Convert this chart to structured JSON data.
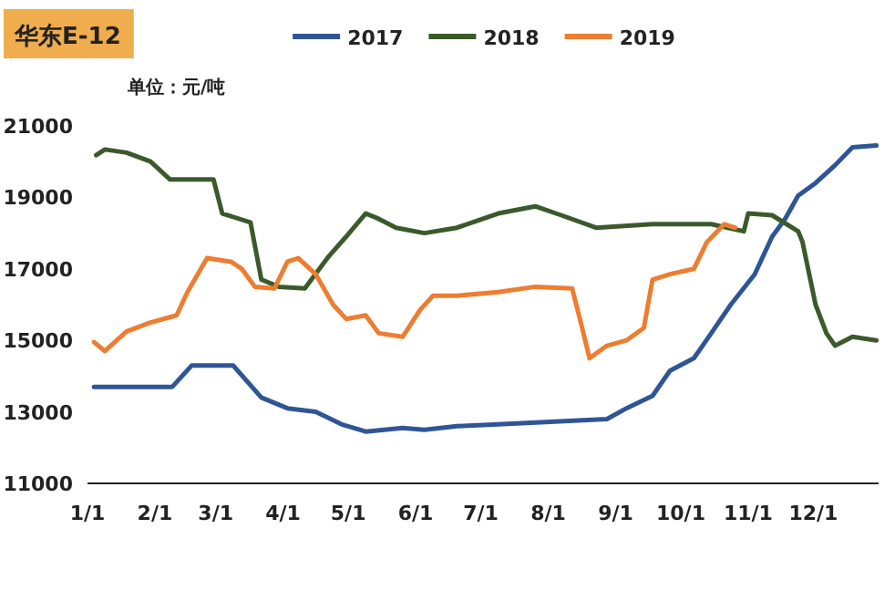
{
  "chart_data": {
    "type": "line",
    "title": "华东E-12",
    "ylabel": "单位：元/吨",
    "legend": "top",
    "xlim": [
      "--01-01",
      "--12-31"
    ],
    "ylim": [
      11000,
      21000
    ],
    "yticks": [
      11000,
      13000,
      15000,
      17000,
      19000,
      21000
    ],
    "xticks": [
      {
        "value": "--01-01",
        "label": "1/1"
      },
      {
        "value": "--02-01",
        "label": "2/1"
      },
      {
        "value": "--03-01",
        "label": "3/1"
      },
      {
        "value": "--04-01",
        "label": "4/1"
      },
      {
        "value": "--05-01",
        "label": "5/1"
      },
      {
        "value": "--06-01",
        "label": "6/1"
      },
      {
        "value": "--07-01",
        "label": "7/1"
      },
      {
        "value": "--08-01",
        "label": "8/1"
      },
      {
        "value": "--09-01",
        "label": "9/1"
      },
      {
        "value": "--10-01",
        "label": "10/1"
      },
      {
        "value": "--11-01",
        "label": "11/1"
      },
      {
        "value": "--12-01",
        "label": "12/1"
      }
    ],
    "series": [
      {
        "name": "2017",
        "color": "#2f5597",
        "x": [
          "--01-04",
          "--02-09",
          "--02-18",
          "--03-09",
          "--03-22",
          "--04-03",
          "--04-16",
          "--04-28",
          "--05-09",
          "--05-26",
          "--06-05",
          "--06-20",
          "--07-09",
          "--08-28",
          "--09-06",
          "--09-18",
          "--09-26",
          "--10-07",
          "--10-15",
          "--10-24",
          "--11-04",
          "--11-12",
          "--11-18",
          "--11-24",
          "--12-02",
          "--12-11",
          "--12-19",
          "--12-30"
        ],
        "values": [
          13700,
          13700,
          14300,
          14300,
          13400,
          13100,
          13000,
          12650,
          12450,
          12550,
          12500,
          12600,
          12650,
          12800,
          13100,
          13450,
          14150,
          14500,
          15200,
          16000,
          16850,
          17900,
          18400,
          19050,
          19400,
          19900,
          20400,
          20450
        ]
      },
      {
        "name": "2018",
        "color": "#3b5a2b",
        "x": [
          "--01-05",
          "--01-09",
          "--01-19",
          "--01-30",
          "--02-08",
          "--02-28",
          "--03-04",
          "--03-17",
          "--03-22",
          "--03-30",
          "--04-11",
          "--04-22",
          "--04-30",
          "--05-09",
          "--05-15",
          "--05-23",
          "--06-05",
          "--06-20",
          "--07-09",
          "--07-26",
          "--08-07",
          "--08-23",
          "--09-18",
          "--10-15",
          "--10-30",
          "--11-01",
          "--11-12",
          "--11-24",
          "--11-26",
          "--12-02",
          "--12-07",
          "--12-11",
          "--12-19",
          "--12-30"
        ],
        "values": [
          20180,
          20340,
          20250,
          20000,
          19500,
          19500,
          18550,
          18300,
          16700,
          16500,
          16450,
          17350,
          17900,
          18550,
          18400,
          18150,
          18000,
          18150,
          18550,
          18750,
          18500,
          18150,
          18250,
          18250,
          18050,
          18550,
          18500,
          18050,
          17750,
          16000,
          15200,
          14850,
          15100,
          15000
        ]
      },
      {
        "name": "2019",
        "color": "#ed7d31",
        "x": [
          "--01-04",
          "--01-09",
          "--01-19",
          "--01-30",
          "--02-11",
          "--02-16",
          "--02-25",
          "--03-08",
          "--03-13",
          "--03-19",
          "--03-28",
          "--04-03",
          "--04-08",
          "--04-16",
          "--04-24",
          "--04-30",
          "--05-09",
          "--05-15",
          "--05-26",
          "--06-03",
          "--06-09",
          "--06-20",
          "--07-09",
          "--07-26",
          "--08-12",
          "--08-16",
          "--08-20",
          "--08-28",
          "--09-06",
          "--09-14",
          "--09-18",
          "--09-26",
          "--10-07",
          "--10-13",
          "--10-21",
          "--10-26"
        ],
        "values": [
          14950,
          14700,
          15250,
          15500,
          15700,
          16350,
          17300,
          17200,
          17000,
          16500,
          16450,
          17200,
          17300,
          16850,
          16000,
          15600,
          15700,
          15200,
          15100,
          15850,
          16250,
          16250,
          16350,
          16500,
          16450,
          15500,
          14500,
          14850,
          15000,
          15350,
          16700,
          16850,
          17000,
          17750,
          18250,
          18150
        ]
      }
    ]
  }
}
